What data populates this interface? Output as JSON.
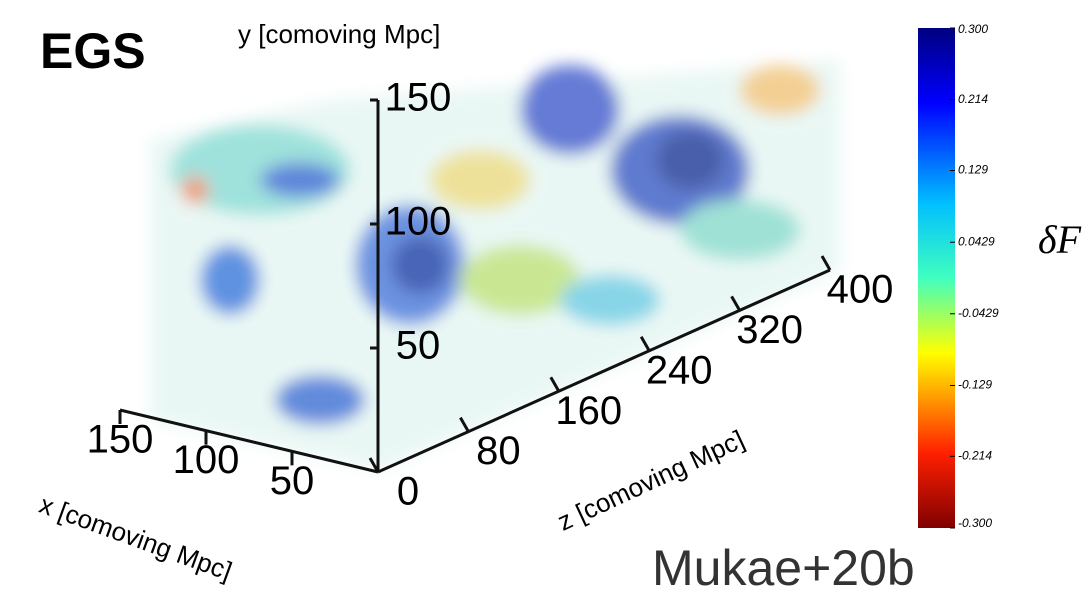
{
  "chart_data": {
    "type": "volume3d",
    "title": "EGS",
    "xlabel": "x [comoving Mpc]",
    "ylabel": "y [comoving Mpc]",
    "zlabel": "z [comoving Mpc]",
    "xlim": [
      0,
      150
    ],
    "xticks": [
      50,
      100,
      150
    ],
    "ylim": [
      0,
      150
    ],
    "yticks": [
      50,
      100,
      150
    ],
    "zlim": [
      0,
      400
    ],
    "zticks": [
      0,
      80,
      160,
      240,
      320,
      400
    ],
    "colorbar_label": "δF",
    "clim": [
      -0.3,
      0.3
    ],
    "cticks": [
      {
        "value": 0.3,
        "label": "0.300"
      },
      0.214,
      0.129,
      0.0429,
      -0.0429,
      -0.129,
      -0.214,
      {
        "value": -0.3,
        "label": "-0.300"
      }
    ],
    "credit": "Mukae+20b"
  }
}
